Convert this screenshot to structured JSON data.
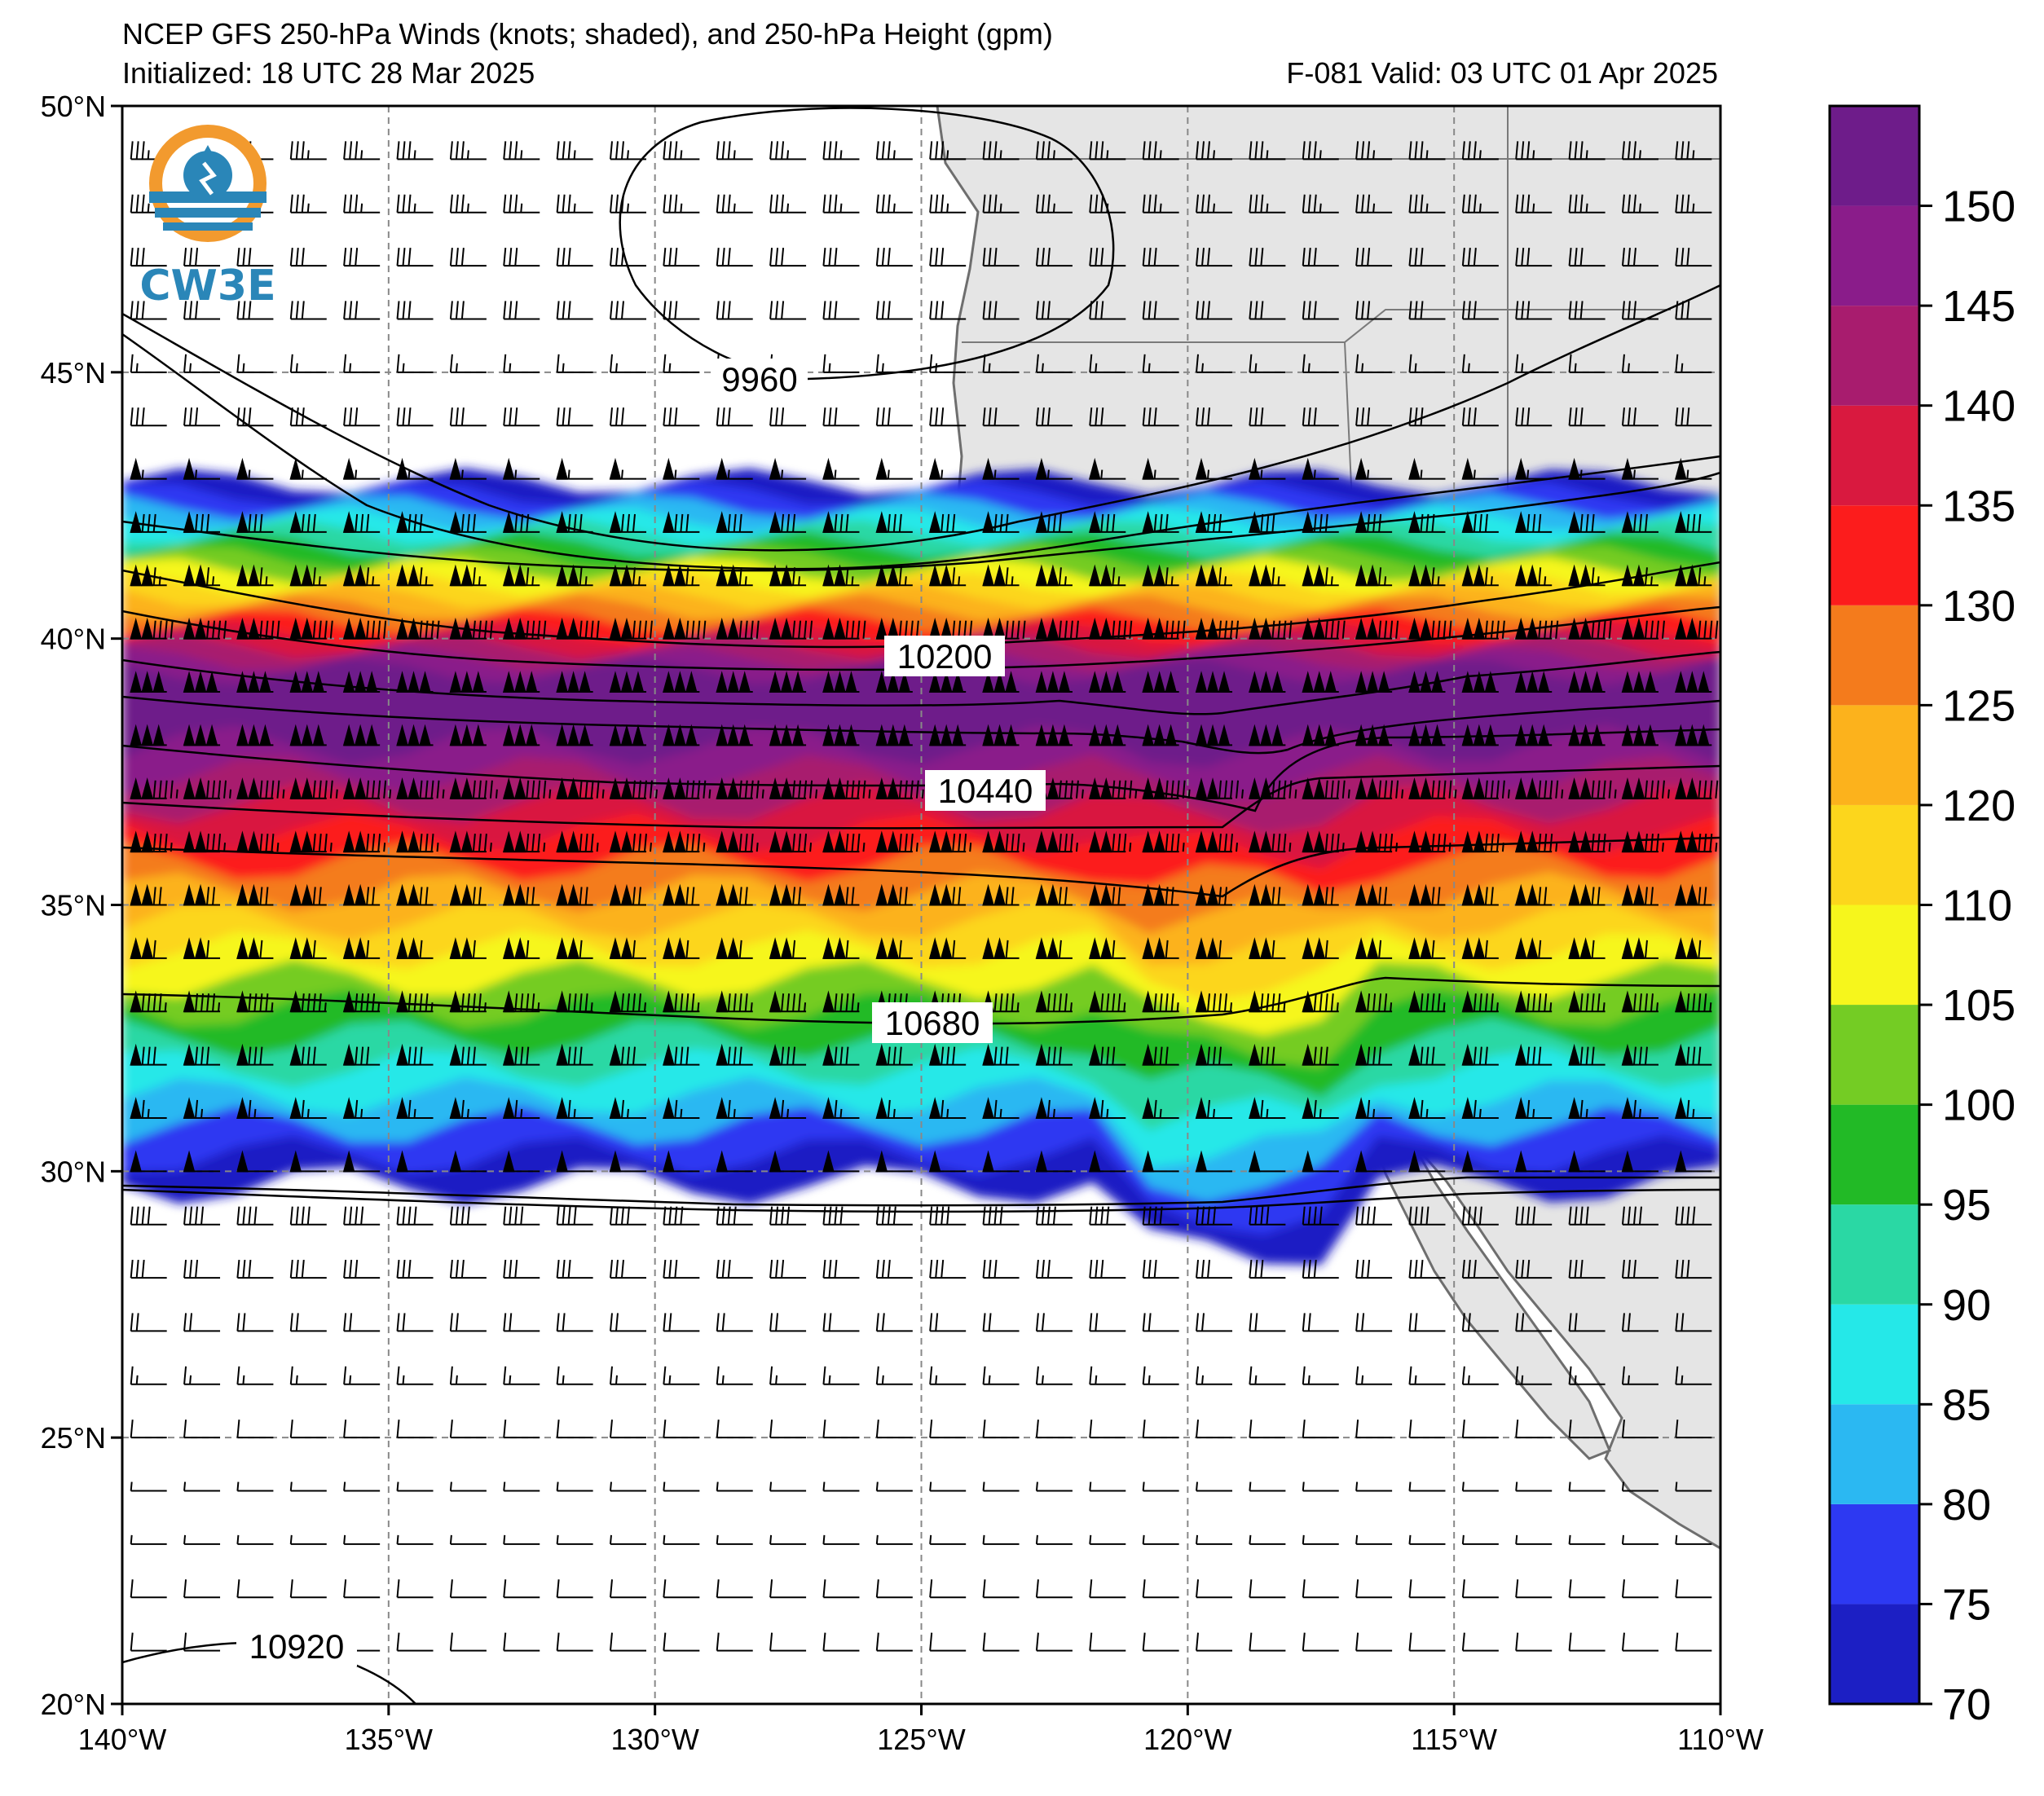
{
  "title": {
    "line1": "NCEP GFS 250-hPa Winds (knots; shaded), and 250-hPa Height (gpm)",
    "init": "Initialized: 18 UTC 28 Mar 2025",
    "valid": "F-081  Valid: 03 UTC 01 Apr 2025"
  },
  "logo": {
    "text": "CW3E"
  },
  "map": {
    "lon_range": [
      -140,
      -110
    ],
    "lat_range": [
      20,
      50
    ],
    "lon_ticks": [
      {
        "value": -140,
        "label": "140°W"
      },
      {
        "value": -135,
        "label": "135°W"
      },
      {
        "value": -130,
        "label": "130°W"
      },
      {
        "value": -125,
        "label": "125°W"
      },
      {
        "value": -120,
        "label": "120°W"
      },
      {
        "value": -115,
        "label": "115°W"
      },
      {
        "value": -110,
        "label": "110°W"
      }
    ],
    "lat_ticks": [
      {
        "value": 50,
        "label": "50°N"
      },
      {
        "value": 45,
        "label": "45°N"
      },
      {
        "value": 40,
        "label": "40°N"
      },
      {
        "value": 35,
        "label": "35°N"
      },
      {
        "value": 30,
        "label": "30°N"
      },
      {
        "value": 25,
        "label": "25°N"
      },
      {
        "value": 20,
        "label": "20°N"
      }
    ],
    "land_color": "#e5e5e5",
    "coast_color": "#6e6e6e"
  },
  "contours": [
    {
      "label": "9960"
    },
    {
      "label": "10200"
    },
    {
      "label": "10440"
    },
    {
      "label": "10680"
    },
    {
      "label": "10920"
    }
  ],
  "colorbar": {
    "labels": [
      "70",
      "75",
      "80",
      "85",
      "90",
      "95",
      "100",
      "105",
      "110",
      "120",
      "125",
      "130",
      "135",
      "140",
      "145",
      "150"
    ],
    "colors": [
      "#1c1fc4",
      "#2d39f2",
      "#2bb8f2",
      "#25e8e8",
      "#2ad8a4",
      "#22ba26",
      "#74cc24",
      "#f6f61c",
      "#fcd61c",
      "#fcb21c",
      "#f47b1c",
      "#fc1c1c",
      "#d9193f",
      "#a81c6e",
      "#8a1c8a",
      "#6e1c8a"
    ]
  },
  "wind_field": {
    "jet_axis_lat": 38.9,
    "jet_core_speed_kt": 150
  }
}
